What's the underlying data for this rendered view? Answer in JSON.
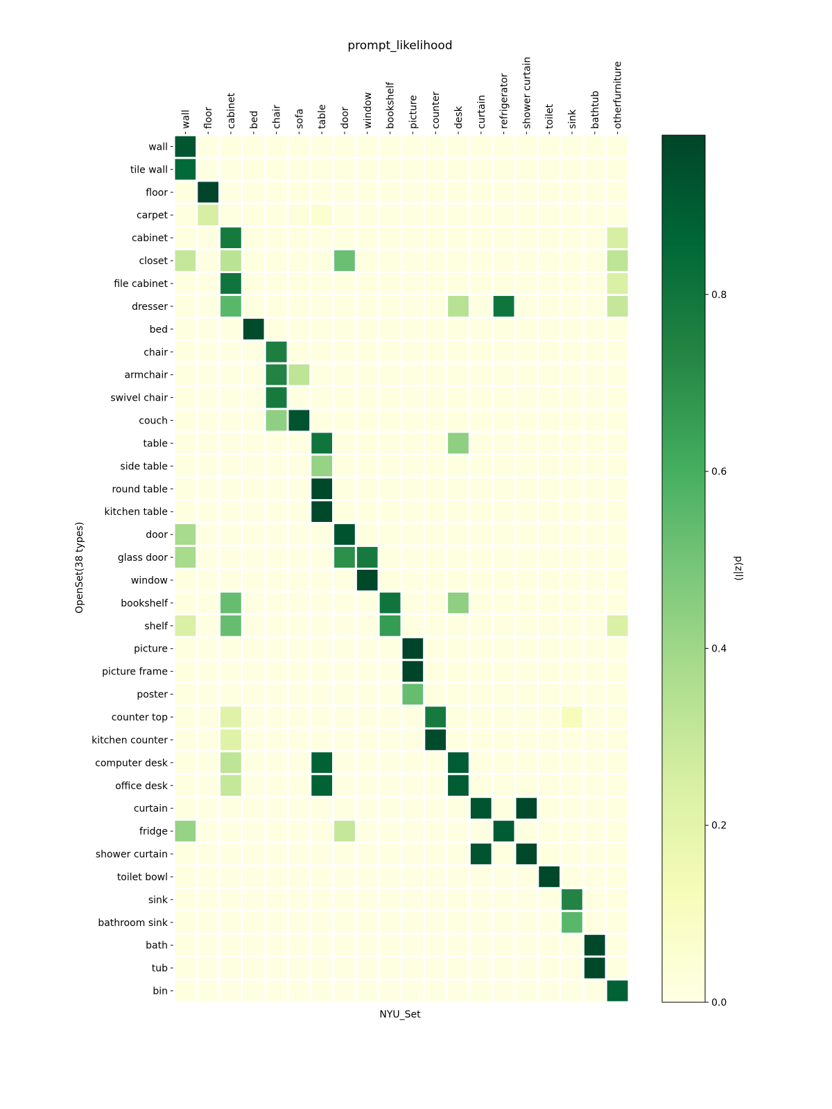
{
  "chart_data": {
    "type": "heatmap",
    "title": "prompt_likelihood",
    "xlabel": "NYU_Set",
    "ylabel": "OpenSet(38 types)",
    "colormap": "YlGn",
    "colorbar": {
      "label": "p(z|l)",
      "range": [
        0,
        0.98
      ],
      "ticks": [
        0.0,
        0.2,
        0.4,
        0.6,
        0.8
      ],
      "tick_labels": [
        "0.0",
        "0.2",
        "0.4",
        "0.6",
        "0.8"
      ]
    },
    "x_categories": [
      "wall",
      "floor",
      "cabinet",
      "bed",
      "chair",
      "sofa",
      "table",
      "door",
      "window",
      "bookshelf",
      "picture",
      "counter",
      "desk",
      "curtain",
      "refrigerator",
      "shower curtain",
      "toilet",
      "sink",
      "bathtub",
      "otherfurniture"
    ],
    "y_categories": [
      "wall",
      "tile wall",
      "floor",
      "carpet",
      "cabinet",
      "closet",
      "file cabinet",
      "dresser",
      "bed",
      "chair",
      "armchair",
      "swivel chair",
      "couch",
      "table",
      "side table",
      "round table",
      "kitchen table",
      "door",
      "glass door",
      "window",
      "bookshelf",
      "shelf",
      "picture",
      "picture frame",
      "poster",
      "counter top",
      "kitchen counter",
      "computer desk",
      "office desk",
      "curtain",
      "fridge",
      "shower curtain",
      "toilet bowl",
      "sink",
      "bathroom sink",
      "bath",
      "tub",
      "bin"
    ],
    "values": [
      [
        0.92,
        0.01,
        0.02,
        0.02,
        0.02,
        0.02,
        0.02,
        0.02,
        0.02,
        0.02,
        0.02,
        0.02,
        0.02,
        0.02,
        0.02,
        0.02,
        0.02,
        0.02,
        0.02,
        0.02
      ],
      [
        0.85,
        0.01,
        0.01,
        0.02,
        0.02,
        0.02,
        0.02,
        0.02,
        0.02,
        0.02,
        0.02,
        0.02,
        0.02,
        0.02,
        0.02,
        0.02,
        0.02,
        0.02,
        0.02,
        0.02
      ],
      [
        0.02,
        0.98,
        0.01,
        0.02,
        0.02,
        0.02,
        0.02,
        0.02,
        0.02,
        0.02,
        0.02,
        0.02,
        0.02,
        0.02,
        0.02,
        0.02,
        0.02,
        0.02,
        0.02,
        0.02
      ],
      [
        0.02,
        0.25,
        0.01,
        0.02,
        0.02,
        0.03,
        0.06,
        0.02,
        0.02,
        0.02,
        0.02,
        0.02,
        0.02,
        0.02,
        0.02,
        0.02,
        0.02,
        0.02,
        0.02,
        0.02
      ],
      [
        0.02,
        0.01,
        0.78,
        0.02,
        0.02,
        0.02,
        0.02,
        0.02,
        0.02,
        0.02,
        0.02,
        0.02,
        0.02,
        0.02,
        0.02,
        0.02,
        0.02,
        0.02,
        0.02,
        0.25
      ],
      [
        0.3,
        0.01,
        0.33,
        0.02,
        0.02,
        0.02,
        0.02,
        0.52,
        0.02,
        0.02,
        0.02,
        0.02,
        0.02,
        0.02,
        0.02,
        0.02,
        0.02,
        0.02,
        0.02,
        0.32
      ],
      [
        0.02,
        0.01,
        0.8,
        0.02,
        0.02,
        0.02,
        0.02,
        0.02,
        0.02,
        0.02,
        0.02,
        0.02,
        0.02,
        0.02,
        0.02,
        0.02,
        0.02,
        0.02,
        0.02,
        0.24
      ],
      [
        0.02,
        0.01,
        0.56,
        0.02,
        0.02,
        0.02,
        0.02,
        0.02,
        0.02,
        0.02,
        0.02,
        0.02,
        0.34,
        0.02,
        0.8,
        0.02,
        0.02,
        0.02,
        0.02,
        0.3
      ],
      [
        0.02,
        0.01,
        0.01,
        0.96,
        0.02,
        0.02,
        0.02,
        0.02,
        0.02,
        0.02,
        0.02,
        0.02,
        0.02,
        0.02,
        0.02,
        0.02,
        0.02,
        0.02,
        0.02,
        0.02
      ],
      [
        0.02,
        0.01,
        0.01,
        0.01,
        0.76,
        0.02,
        0.02,
        0.02,
        0.02,
        0.02,
        0.02,
        0.02,
        0.02,
        0.02,
        0.02,
        0.02,
        0.02,
        0.02,
        0.02,
        0.02
      ],
      [
        0.02,
        0.01,
        0.01,
        0.01,
        0.74,
        0.32,
        0.02,
        0.02,
        0.02,
        0.02,
        0.02,
        0.02,
        0.02,
        0.02,
        0.02,
        0.02,
        0.02,
        0.02,
        0.02,
        0.02
      ],
      [
        0.02,
        0.01,
        0.01,
        0.01,
        0.78,
        0.01,
        0.02,
        0.02,
        0.02,
        0.02,
        0.02,
        0.02,
        0.02,
        0.02,
        0.02,
        0.02,
        0.02,
        0.02,
        0.02,
        0.02
      ],
      [
        0.02,
        0.01,
        0.01,
        0.01,
        0.44,
        0.93,
        0.02,
        0.02,
        0.02,
        0.02,
        0.02,
        0.02,
        0.02,
        0.02,
        0.02,
        0.02,
        0.02,
        0.02,
        0.02,
        0.02
      ],
      [
        0.02,
        0.01,
        0.01,
        0.01,
        0.01,
        0.01,
        0.8,
        0.02,
        0.02,
        0.02,
        0.02,
        0.02,
        0.44,
        0.02,
        0.02,
        0.02,
        0.02,
        0.02,
        0.02,
        0.02
      ],
      [
        0.02,
        0.01,
        0.01,
        0.01,
        0.01,
        0.01,
        0.42,
        0.02,
        0.02,
        0.02,
        0.02,
        0.02,
        0.02,
        0.02,
        0.02,
        0.02,
        0.02,
        0.02,
        0.02,
        0.02
      ],
      [
        0.02,
        0.01,
        0.01,
        0.01,
        0.01,
        0.01,
        0.97,
        0.02,
        0.02,
        0.02,
        0.02,
        0.02,
        0.02,
        0.02,
        0.02,
        0.02,
        0.02,
        0.02,
        0.02,
        0.02
      ],
      [
        0.02,
        0.01,
        0.01,
        0.01,
        0.01,
        0.01,
        0.97,
        0.02,
        0.02,
        0.02,
        0.02,
        0.02,
        0.02,
        0.02,
        0.02,
        0.02,
        0.02,
        0.02,
        0.02,
        0.02
      ],
      [
        0.38,
        0.01,
        0.01,
        0.01,
        0.01,
        0.01,
        0.01,
        0.93,
        0.02,
        0.02,
        0.02,
        0.02,
        0.02,
        0.02,
        0.02,
        0.02,
        0.02,
        0.02,
        0.02,
        0.02
      ],
      [
        0.38,
        0.01,
        0.01,
        0.01,
        0.01,
        0.01,
        0.01,
        0.7,
        0.78,
        0.02,
        0.02,
        0.02,
        0.02,
        0.02,
        0.02,
        0.02,
        0.02,
        0.02,
        0.02,
        0.02
      ],
      [
        0.02,
        0.01,
        0.01,
        0.01,
        0.01,
        0.01,
        0.01,
        0.01,
        0.97,
        0.02,
        0.02,
        0.02,
        0.02,
        0.02,
        0.02,
        0.02,
        0.02,
        0.02,
        0.02,
        0.02
      ],
      [
        0.02,
        0.01,
        0.53,
        0.01,
        0.01,
        0.01,
        0.01,
        0.01,
        0.01,
        0.8,
        0.02,
        0.02,
        0.44,
        0.02,
        0.02,
        0.02,
        0.02,
        0.02,
        0.02,
        0.02
      ],
      [
        0.24,
        0.01,
        0.53,
        0.01,
        0.01,
        0.01,
        0.01,
        0.01,
        0.01,
        0.66,
        0.02,
        0.02,
        0.02,
        0.02,
        0.02,
        0.02,
        0.02,
        0.02,
        0.02,
        0.24
      ],
      [
        0.02,
        0.01,
        0.01,
        0.01,
        0.01,
        0.01,
        0.01,
        0.01,
        0.01,
        0.01,
        0.98,
        0.02,
        0.02,
        0.02,
        0.02,
        0.02,
        0.02,
        0.02,
        0.02,
        0.02
      ],
      [
        0.02,
        0.01,
        0.01,
        0.01,
        0.01,
        0.01,
        0.01,
        0.01,
        0.01,
        0.01,
        0.98,
        0.02,
        0.02,
        0.02,
        0.02,
        0.02,
        0.02,
        0.02,
        0.02,
        0.02
      ],
      [
        0.02,
        0.01,
        0.01,
        0.01,
        0.01,
        0.01,
        0.01,
        0.01,
        0.01,
        0.01,
        0.53,
        0.02,
        0.02,
        0.02,
        0.02,
        0.02,
        0.02,
        0.02,
        0.02,
        0.02
      ],
      [
        0.02,
        0.01,
        0.22,
        0.01,
        0.01,
        0.01,
        0.01,
        0.01,
        0.01,
        0.01,
        0.01,
        0.78,
        0.02,
        0.02,
        0.02,
        0.02,
        0.02,
        0.12,
        0.02,
        0.02
      ],
      [
        0.02,
        0.01,
        0.22,
        0.01,
        0.01,
        0.01,
        0.01,
        0.01,
        0.01,
        0.01,
        0.01,
        0.96,
        0.02,
        0.02,
        0.02,
        0.02,
        0.02,
        0.02,
        0.02,
        0.02
      ],
      [
        0.02,
        0.01,
        0.32,
        0.01,
        0.01,
        0.01,
        0.88,
        0.01,
        0.01,
        0.01,
        0.01,
        0.01,
        0.9,
        0.02,
        0.02,
        0.02,
        0.02,
        0.02,
        0.02,
        0.02
      ],
      [
        0.02,
        0.01,
        0.3,
        0.01,
        0.01,
        0.01,
        0.88,
        0.01,
        0.01,
        0.01,
        0.01,
        0.01,
        0.9,
        0.02,
        0.02,
        0.02,
        0.02,
        0.02,
        0.02,
        0.02
      ],
      [
        0.02,
        0.01,
        0.01,
        0.01,
        0.01,
        0.01,
        0.01,
        0.01,
        0.01,
        0.01,
        0.01,
        0.01,
        0.01,
        0.93,
        0.02,
        0.97,
        0.02,
        0.02,
        0.02,
        0.02
      ],
      [
        0.42,
        0.01,
        0.01,
        0.01,
        0.01,
        0.01,
        0.01,
        0.3,
        0.01,
        0.01,
        0.01,
        0.01,
        0.01,
        0.01,
        0.9,
        0.02,
        0.02,
        0.02,
        0.02,
        0.02
      ],
      [
        0.02,
        0.01,
        0.01,
        0.01,
        0.01,
        0.01,
        0.01,
        0.01,
        0.01,
        0.01,
        0.01,
        0.01,
        0.01,
        0.93,
        0.02,
        0.97,
        0.02,
        0.02,
        0.02,
        0.02
      ],
      [
        0.02,
        0.01,
        0.01,
        0.01,
        0.01,
        0.01,
        0.01,
        0.01,
        0.01,
        0.01,
        0.01,
        0.01,
        0.01,
        0.01,
        0.01,
        0.01,
        0.97,
        0.02,
        0.02,
        0.02
      ],
      [
        0.02,
        0.01,
        0.01,
        0.01,
        0.01,
        0.01,
        0.01,
        0.01,
        0.01,
        0.01,
        0.01,
        0.01,
        0.01,
        0.01,
        0.01,
        0.01,
        0.01,
        0.74,
        0.02,
        0.02
      ],
      [
        0.02,
        0.01,
        0.01,
        0.01,
        0.01,
        0.01,
        0.01,
        0.01,
        0.01,
        0.01,
        0.01,
        0.01,
        0.01,
        0.01,
        0.01,
        0.01,
        0.01,
        0.56,
        0.02,
        0.02
      ],
      [
        0.02,
        0.01,
        0.01,
        0.01,
        0.01,
        0.01,
        0.01,
        0.01,
        0.01,
        0.01,
        0.01,
        0.01,
        0.01,
        0.01,
        0.01,
        0.01,
        0.01,
        0.01,
        0.97,
        0.02
      ],
      [
        0.02,
        0.01,
        0.01,
        0.01,
        0.01,
        0.01,
        0.01,
        0.01,
        0.01,
        0.01,
        0.01,
        0.01,
        0.01,
        0.01,
        0.01,
        0.01,
        0.01,
        0.01,
        0.97,
        0.02
      ],
      [
        0.02,
        0.01,
        0.01,
        0.01,
        0.01,
        0.01,
        0.01,
        0.01,
        0.01,
        0.01,
        0.01,
        0.01,
        0.01,
        0.01,
        0.01,
        0.01,
        0.01,
        0.01,
        0.01,
        0.88
      ]
    ]
  }
}
